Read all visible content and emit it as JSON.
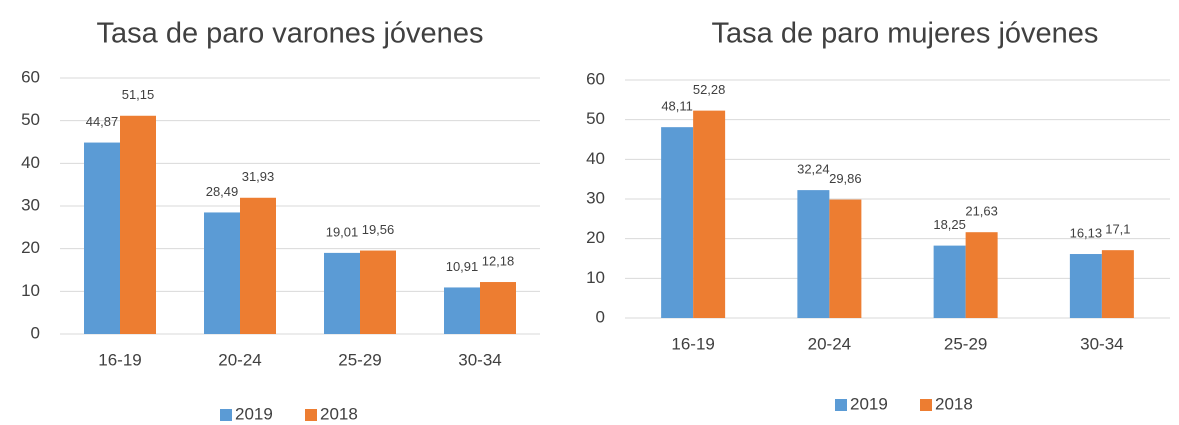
{
  "chart_data": [
    {
      "type": "bar",
      "title": "Tasa de paro varones jóvenes",
      "categories": [
        "16-19",
        "20-24",
        "25-29",
        "30-34"
      ],
      "series": [
        {
          "name": "2019",
          "color": "#5b9bd5",
          "values": [
            44.87,
            28.49,
            19.01,
            10.91
          ],
          "value_labels": [
            "44,87",
            "28,49",
            "19,01",
            "10,91"
          ]
        },
        {
          "name": "2018",
          "color": "#ed7d31",
          "values": [
            51.15,
            31.93,
            19.56,
            12.18
          ],
          "value_labels": [
            "51,15",
            "31,93",
            "19,56",
            "12,18"
          ]
        }
      ],
      "ylim": [
        0,
        60
      ],
      "yticks": [
        0,
        10,
        20,
        30,
        40,
        50,
        60
      ],
      "grid": true,
      "legend": "bottom"
    },
    {
      "type": "bar",
      "title": "Tasa de paro mujeres jóvenes",
      "categories": [
        "16-19",
        "20-24",
        "25-29",
        "30-34"
      ],
      "series": [
        {
          "name": "2019",
          "color": "#5b9bd5",
          "values": [
            48.11,
            32.24,
            18.25,
            16.13
          ],
          "value_labels": [
            "48,11",
            "32,24",
            "18,25",
            "16,13"
          ]
        },
        {
          "name": "2018",
          "color": "#ed7d31",
          "values": [
            52.28,
            29.86,
            21.63,
            17.1
          ],
          "value_labels": [
            "52,28",
            "29,86",
            "21,63",
            "17,1"
          ]
        }
      ],
      "ylim": [
        0,
        60
      ],
      "yticks": [
        0,
        10,
        20,
        30,
        40,
        50,
        60
      ],
      "grid": true,
      "legend": "bottom"
    }
  ]
}
